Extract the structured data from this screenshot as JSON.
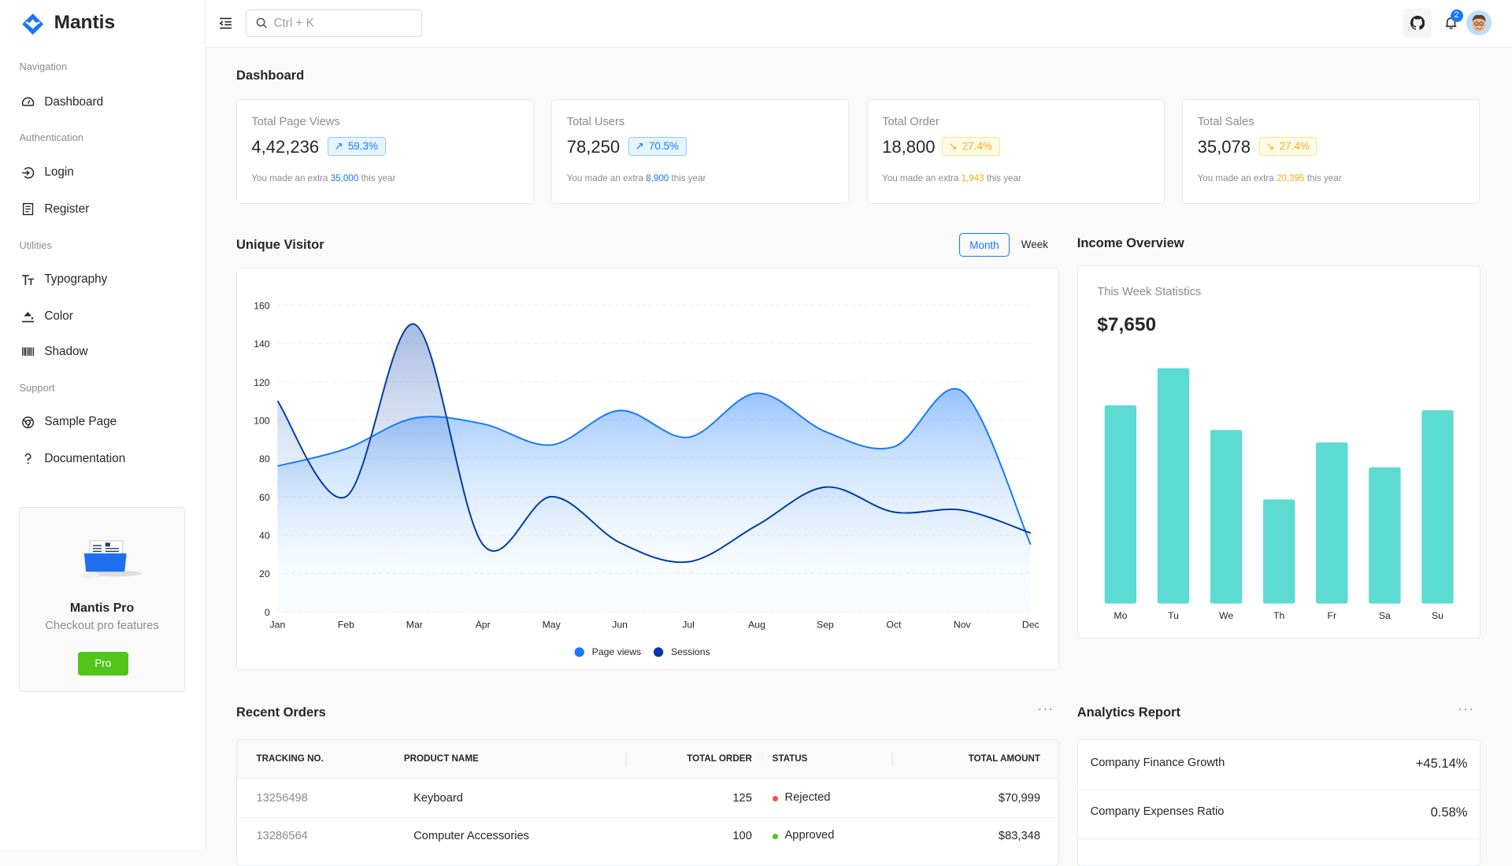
{
  "brand": {
    "name": "Mantis",
    "color": "#1677ff"
  },
  "sidebar": {
    "sections": [
      "Navigation",
      "Authentication",
      "Utilities",
      "Support"
    ],
    "items": [
      {
        "label": "Dashboard",
        "icon": "dashboard-icon"
      },
      {
        "label": "Login",
        "icon": "login-icon"
      },
      {
        "label": "Register",
        "icon": "register-icon"
      },
      {
        "label": "Typography",
        "icon": "typography-icon"
      },
      {
        "label": "Color",
        "icon": "bg-colors-icon"
      },
      {
        "label": "Shadow",
        "icon": "barcode-icon"
      },
      {
        "label": "Sample Page",
        "icon": "chrome-icon"
      },
      {
        "label": "Documentation",
        "icon": "question-icon"
      }
    ],
    "promo": {
      "title": "Mantis Pro",
      "subtitle": "Checkout pro features",
      "button": "Pro",
      "button_color": "#52c41a"
    }
  },
  "header": {
    "search_placeholder": "Ctrl + K",
    "notification_count": "2"
  },
  "page_title": "Dashboard",
  "stats": [
    {
      "title": "Total Page Views",
      "value": "4,42,236",
      "percent": "59.3%",
      "trend": "up",
      "pre": "You made an extra ",
      "extra": "35,000",
      "post": " this year",
      "color": "#1677ff",
      "bg": "#e6f4ff",
      "border": "#91caff"
    },
    {
      "title": "Total Users",
      "value": "78,250",
      "percent": "70.5%",
      "trend": "up",
      "pre": "You made an extra ",
      "extra": "8,900",
      "post": " this year",
      "color": "#1677ff",
      "bg": "#e6f4ff",
      "border": "#91caff"
    },
    {
      "title": "Total Order",
      "value": "18,800",
      "percent": "27.4%",
      "trend": "down",
      "pre": "You made an extra ",
      "extra": "1,943",
      "post": " this year",
      "color": "#faad14",
      "bg": "#fffbe6",
      "border": "#ffe58f"
    },
    {
      "title": "Total Sales",
      "value": "35,078",
      "percent": "27.4%",
      "trend": "down",
      "pre": "You made an extra ",
      "extra": "20,395",
      "post": " this year",
      "color": "#faad14",
      "bg": "#fffbe6",
      "border": "#ffe58f"
    }
  ],
  "unique_visitor": {
    "title": "Unique Visitor",
    "toggle": [
      "Month",
      "Week"
    ],
    "selected": "Month"
  },
  "income": {
    "title": "Income Overview",
    "subtitle": "This Week Statistics",
    "amount": "$7,650"
  },
  "chart_data": [
    {
      "type": "area",
      "categories": [
        "Jan",
        "Feb",
        "Mar",
        "Apr",
        "May",
        "Jun",
        "Jul",
        "Aug",
        "Sep",
        "Oct",
        "Nov",
        "Dec"
      ],
      "yticks": [
        0,
        20,
        40,
        60,
        80,
        100,
        120,
        140,
        160
      ],
      "ylim": [
        0,
        160
      ],
      "grid": true,
      "legend": "bottom",
      "series": [
        {
          "name": "Page views",
          "color": "#1677ff",
          "values": [
            76,
            85,
            101,
            98,
            87,
            105,
            91,
            114,
            94,
            86,
            115,
            35
          ]
        },
        {
          "name": "Sessions",
          "color": "#0039a6",
          "values": [
            110,
            60,
            150,
            35,
            60,
            36,
            26,
            45,
            65,
            52,
            53,
            41
          ]
        }
      ]
    },
    {
      "type": "bar",
      "categories": [
        "Mo",
        "Tu",
        "We",
        "Th",
        "Fr",
        "Sa",
        "Su"
      ],
      "values": [
        80,
        95,
        70,
        42,
        65,
        55,
        78
      ],
      "color": "#5cdbd3"
    }
  ],
  "orders": {
    "title": "Recent Orders",
    "columns": [
      "TRACKING NO.",
      "PRODUCT NAME",
      "TOTAL ORDER",
      "STATUS",
      "TOTAL AMOUNT"
    ],
    "rows": [
      {
        "tracking": "13256498",
        "product": "Keyboard",
        "qty": "125",
        "status": "Rejected",
        "status_color": "#ff4d4f",
        "amount": "$70,999"
      },
      {
        "tracking": "13286564",
        "product": "Computer Accessories",
        "qty": "100",
        "status": "Approved",
        "status_color": "#52c41a",
        "amount": "$83,348"
      }
    ]
  },
  "analytics": {
    "title": "Analytics Report",
    "items": [
      {
        "label": "Company Finance Growth",
        "value": "+45.14%"
      },
      {
        "label": "Company Expenses Ratio",
        "value": "0.58%"
      }
    ]
  }
}
